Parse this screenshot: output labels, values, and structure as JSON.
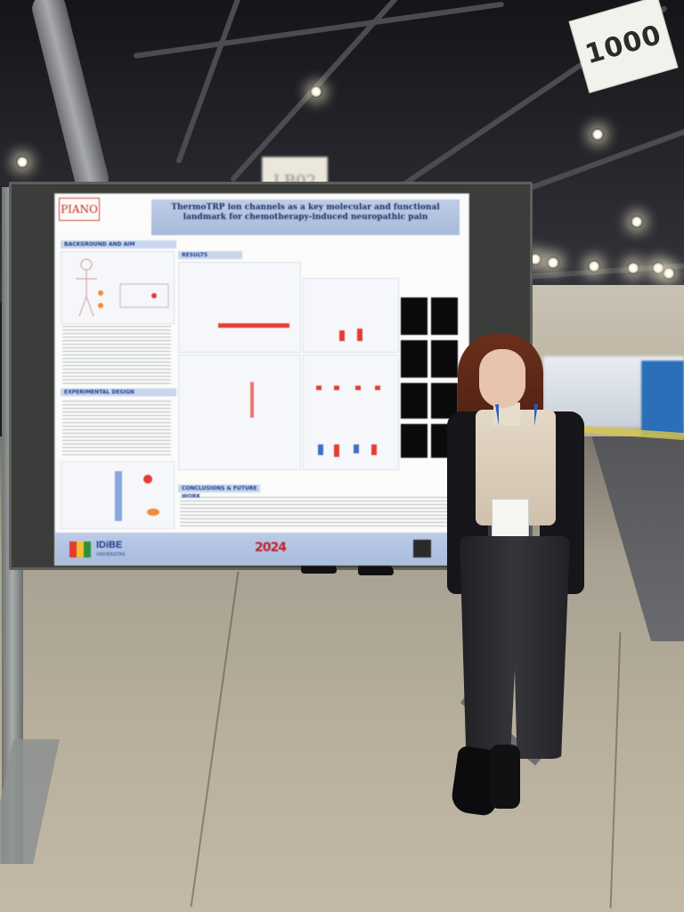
{
  "hall": {
    "sign_number": "1000",
    "sign_small": "LB02"
  },
  "poster": {
    "logo_left": "PIANO",
    "title": "ThermoTRP ion channels as a key molecular and functional landmark for chemotherapy-induced neuropathic pain",
    "sections": [
      {
        "label": "BACKGROUND AND AIM"
      },
      {
        "label": "RESULTS"
      },
      {
        "label": "EXPERIMENTAL DESIGN"
      },
      {
        "label": "CONCLUSIONS & FUTURE WORK"
      }
    ],
    "footer": {
      "institution": "IDiBE",
      "institution_sub": "UNIVERSITAS",
      "event_logo": "2024"
    }
  }
}
